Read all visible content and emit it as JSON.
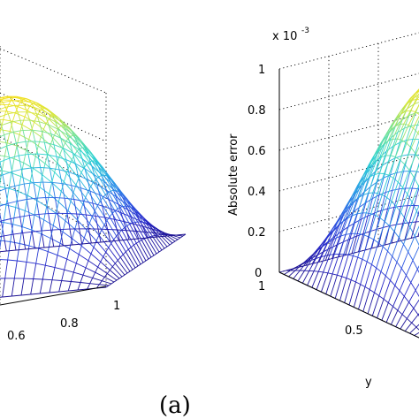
{
  "caption": "(a)",
  "chart_data": [
    {
      "type": "surface",
      "panel": "left",
      "xlabel": "",
      "ylabel": "",
      "zlabel": "",
      "x_ticks": [
        "0.6",
        "0.8",
        "1"
      ],
      "xlim": [
        0,
        1
      ],
      "shape": "sin(pi*x)*sin(pi*y) error surface (partially cropped)",
      "colormap": [
        "#1a0f8f",
        "#2626c8",
        "#2f5fe6",
        "#2aa0e6",
        "#2ed3d3",
        "#6fe29a",
        "#d8e63a",
        "#f5e020"
      ],
      "grid": true
    },
    {
      "type": "surface",
      "panel": "right",
      "zlabel": "Absolute error",
      "ylabel": "y",
      "z_multiplier": "x 10",
      "z_exponent": "-3",
      "zlim": [
        0,
        1
      ],
      "z_ticks": [
        "0",
        "0.2",
        "0.4",
        "0.6",
        "0.8",
        "1"
      ],
      "y_ticks": [
        "1",
        "0.5"
      ],
      "ylim": [
        0,
        1
      ],
      "colormap": [
        "#1a0f8f",
        "#2626c8",
        "#2f5fe6",
        "#2aa0e6",
        "#2ed3d3",
        "#6fe29a",
        "#d8e63a",
        "#f5e020"
      ],
      "grid": true
    }
  ]
}
